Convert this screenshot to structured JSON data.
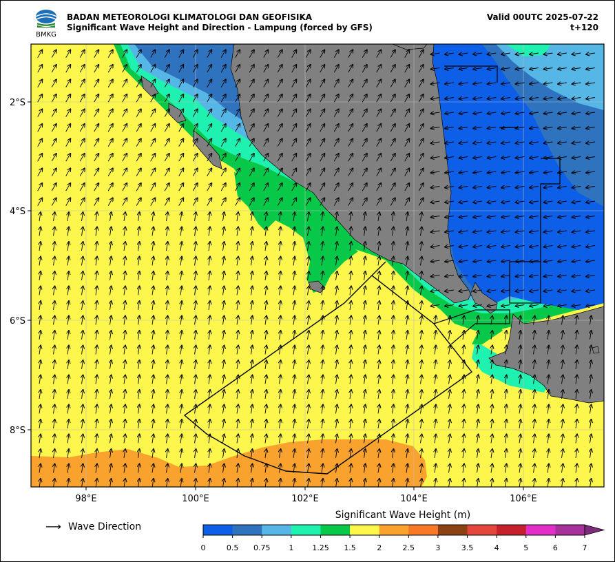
{
  "header": {
    "org": "BADAN METEOROLOGI KLIMATOLOGI DAN GEOFISIKA",
    "title": "Significant Wave Height and Direction - Lampung (forced by GFS)",
    "valid": "Valid 00UTC 2025-07-22",
    "lead": "t+120",
    "logo_text": "BMKG"
  },
  "axes": {
    "lon_labels": [
      "98°E",
      "100°E",
      "102°E",
      "104°E",
      "106°E"
    ],
    "lat_labels": [
      "2°S",
      "4°S",
      "6°S",
      "8°S"
    ]
  },
  "legend": {
    "arrow_label": "Wave Direction"
  },
  "colorbar": {
    "title": "Significant Wave Height (m)",
    "ticks": [
      "0",
      "0.5",
      "0.75",
      "1",
      "1.25",
      "1.5",
      "2",
      "2.5",
      "3",
      "3.5",
      "4",
      "5",
      "6",
      "7"
    ],
    "colors": [
      "#0d5fe8",
      "#2f72bd",
      "#56b7e6",
      "#1ff2b0",
      "#08c84a",
      "#fdf74d",
      "#f9a32e",
      "#f77827",
      "#8b4111",
      "#e2463c",
      "#c4202d",
      "#e12fc8",
      "#a8309a"
    ],
    "extend_color": "#7d2a7a"
  },
  "map_colors": {
    "land": "#808080",
    "sea_yellow": "#fdf74d",
    "sea_orange": "#f9a32e",
    "blue_dark": "#0d5fe8",
    "blue_mid": "#2f72bd",
    "blue_light": "#56b7e6",
    "cyan": "#1ff2b0",
    "green": "#08c84a"
  }
}
